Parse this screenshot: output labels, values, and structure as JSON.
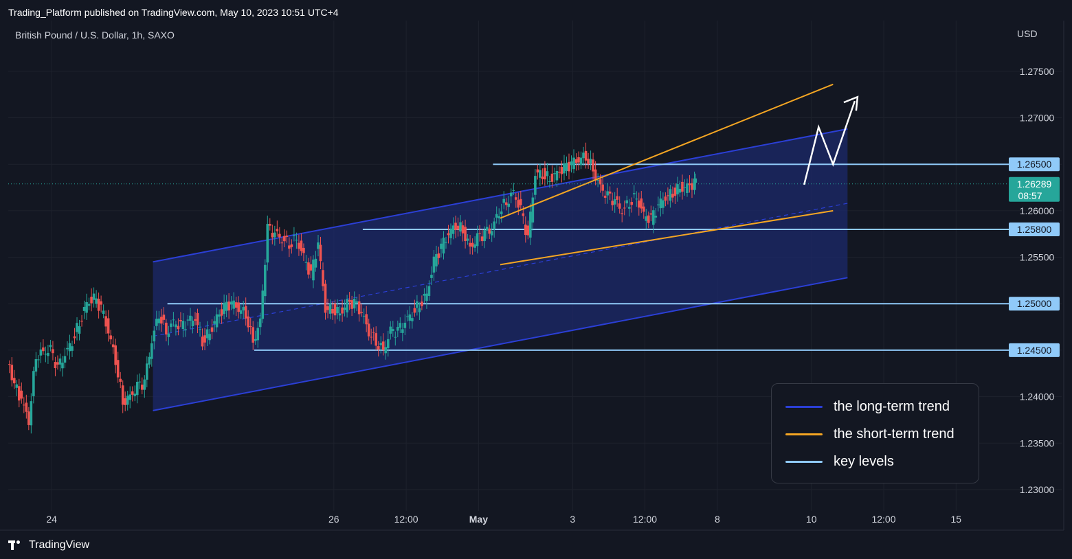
{
  "header": {
    "published": "Trading_Platform published on TradingView.com, May 10, 2023 10:51 UTC+4",
    "symbol": "British Pound / U.S. Dollar, 1h, SAXO",
    "currency": "USD"
  },
  "footer": {
    "brand": "TradingView",
    "logo_icon": "tradingview-logo-icon"
  },
  "colors": {
    "background": "#131722",
    "grid": "#1e222d",
    "up": "#26a69a",
    "down": "#ef5350",
    "long_term": "#2b3fd6",
    "channel_fill": "#1c2a6b",
    "short_term": "#f5a623",
    "key_level": "#90caf9",
    "projection": "#ffffff",
    "price_tag": "#26a69a"
  },
  "chart_data": {
    "type": "candlestick",
    "title": "",
    "ylim": [
      1.228,
      1.2775
    ],
    "x_ticks": [
      {
        "label": "24",
        "x": 6
      },
      {
        "label": "26",
        "x": 45
      },
      {
        "label": "12:00",
        "x": 55
      },
      {
        "label": "May",
        "x": 65,
        "bold": true
      },
      {
        "label": "3",
        "x": 78
      },
      {
        "label": "12:00",
        "x": 88
      },
      {
        "label": "8",
        "x": 98
      },
      {
        "label": "10",
        "x": 111
      },
      {
        "label": "12:00",
        "x": 121
      },
      {
        "label": "15",
        "x": 131
      }
    ],
    "y_ticks": [
      1.23,
      1.235,
      1.24,
      1.245,
      1.25,
      1.255,
      1.26,
      1.265,
      1.27,
      1.275
    ],
    "y_tick_labels": [
      "1.23000",
      "1.23500",
      "1.24000",
      "1.24500",
      "1.25000",
      "1.25500",
      "1.26000",
      "1.26500",
      "1.27000",
      "1.27500"
    ],
    "price_series": [
      [
        0,
        1.2435
      ],
      [
        2,
        1.2395
      ],
      [
        3,
        1.2375
      ],
      [
        4,
        1.2445
      ],
      [
        5,
        1.2448
      ],
      [
        6,
        1.245
      ],
      [
        7,
        1.243
      ],
      [
        8,
        1.2445
      ],
      [
        9,
        1.246
      ],
      [
        10,
        1.248
      ],
      [
        11,
        1.25
      ],
      [
        12,
        1.2505
      ],
      [
        13,
        1.2495
      ],
      [
        14,
        1.247
      ],
      [
        15,
        1.244
      ],
      [
        16,
        1.2395
      ],
      [
        17,
        1.24
      ],
      [
        18,
        1.241
      ],
      [
        19,
        1.2415
      ],
      [
        20,
        1.246
      ],
      [
        21,
        1.249
      ],
      [
        22,
        1.247
      ],
      [
        23,
        1.248
      ],
      [
        24,
        1.2475
      ],
      [
        25,
        1.248
      ],
      [
        26,
        1.2485
      ],
      [
        27,
        1.246
      ],
      [
        28,
        1.247
      ],
      [
        29,
        1.2485
      ],
      [
        30,
        1.2495
      ],
      [
        31,
        1.25
      ],
      [
        32,
        1.2495
      ],
      [
        33,
        1.249
      ],
      [
        34,
        1.246
      ],
      [
        35,
        1.248
      ],
      [
        36,
        1.258
      ],
      [
        37,
        1.2575
      ],
      [
        38,
        1.257
      ],
      [
        39,
        1.2565
      ],
      [
        40,
        1.257
      ],
      [
        41,
        1.255
      ],
      [
        42,
        1.253
      ],
      [
        43,
        1.2565
      ],
      [
        44,
        1.2495
      ],
      [
        45,
        1.2495
      ],
      [
        46,
        1.249
      ],
      [
        47,
        1.25
      ],
      [
        48,
        1.25
      ],
      [
        49,
        1.249
      ],
      [
        50,
        1.247
      ],
      [
        51,
        1.246
      ],
      [
        52,
        1.245
      ],
      [
        53,
        1.247
      ],
      [
        54,
        1.247
      ],
      [
        55,
        1.248
      ],
      [
        56,
        1.249
      ],
      [
        57,
        1.25
      ],
      [
        58,
        1.251
      ],
      [
        59,
        1.2545
      ],
      [
        60,
        1.256
      ],
      [
        61,
        1.2575
      ],
      [
        62,
        1.2585
      ],
      [
        63,
        1.258
      ],
      [
        64,
        1.256
      ],
      [
        65,
        1.257
      ],
      [
        66,
        1.2575
      ],
      [
        67,
        1.258
      ],
      [
        68,
        1.26
      ],
      [
        69,
        1.261
      ],
      [
        70,
        1.262
      ],
      [
        71,
        1.26
      ],
      [
        72,
        1.257
      ],
      [
        73,
        1.264
      ],
      [
        74,
        1.264
      ],
      [
        75,
        1.2635
      ],
      [
        76,
        1.264
      ],
      [
        77,
        1.2645
      ],
      [
        78,
        1.265
      ],
      [
        79,
        1.2655
      ],
      [
        80,
        1.266
      ],
      [
        81,
        1.2645
      ],
      [
        82,
        1.2625
      ],
      [
        83,
        1.2615
      ],
      [
        84,
        1.261
      ],
      [
        85,
        1.26
      ],
      [
        86,
        1.261
      ],
      [
        87,
        1.2615
      ],
      [
        88,
        1.2595
      ],
      [
        89,
        1.259
      ],
      [
        90,
        1.2605
      ],
      [
        91,
        1.2615
      ],
      [
        92,
        1.262
      ],
      [
        93,
        1.2625
      ],
      [
        94,
        1.2625
      ],
      [
        95,
        1.2629
      ]
    ],
    "last_price": {
      "label": "1.26289",
      "countdown": "08:57",
      "value": 1.26289
    },
    "key_levels": [
      {
        "value": 1.265,
        "label": "1.26500",
        "x_start": 67
      },
      {
        "value": 1.258,
        "label": "1.25800",
        "x_start": 49
      },
      {
        "value": 1.25,
        "label": "1.25000",
        "x_start": 22
      },
      {
        "value": 1.245,
        "label": "1.24500",
        "x_start": 34
      }
    ],
    "long_term_channel": {
      "upper": [
        [
          20,
          1.2545
        ],
        [
          116,
          1.2688
        ]
      ],
      "lower": [
        [
          20,
          1.2385
        ],
        [
          116,
          1.2528
        ]
      ],
      "mid": [
        [
          20,
          1.2465
        ],
        [
          116,
          1.2608
        ]
      ]
    },
    "short_term_trend": {
      "upper": [
        [
          68,
          1.2592
        ],
        [
          114,
          1.2736
        ]
      ],
      "lower": [
        [
          68,
          1.2542
        ],
        [
          114,
          1.26
        ]
      ]
    },
    "projection_arrow": [
      [
        110,
        1.2628
      ],
      [
        112,
        1.269
      ],
      [
        114,
        1.265
      ],
      [
        117,
        1.2718
      ]
    ],
    "legend": [
      {
        "label": "the long-term trend",
        "color_key": "long_term"
      },
      {
        "label": "the short-term trend",
        "color_key": "short_term"
      },
      {
        "label": "key levels",
        "color_key": "key_level"
      }
    ]
  }
}
